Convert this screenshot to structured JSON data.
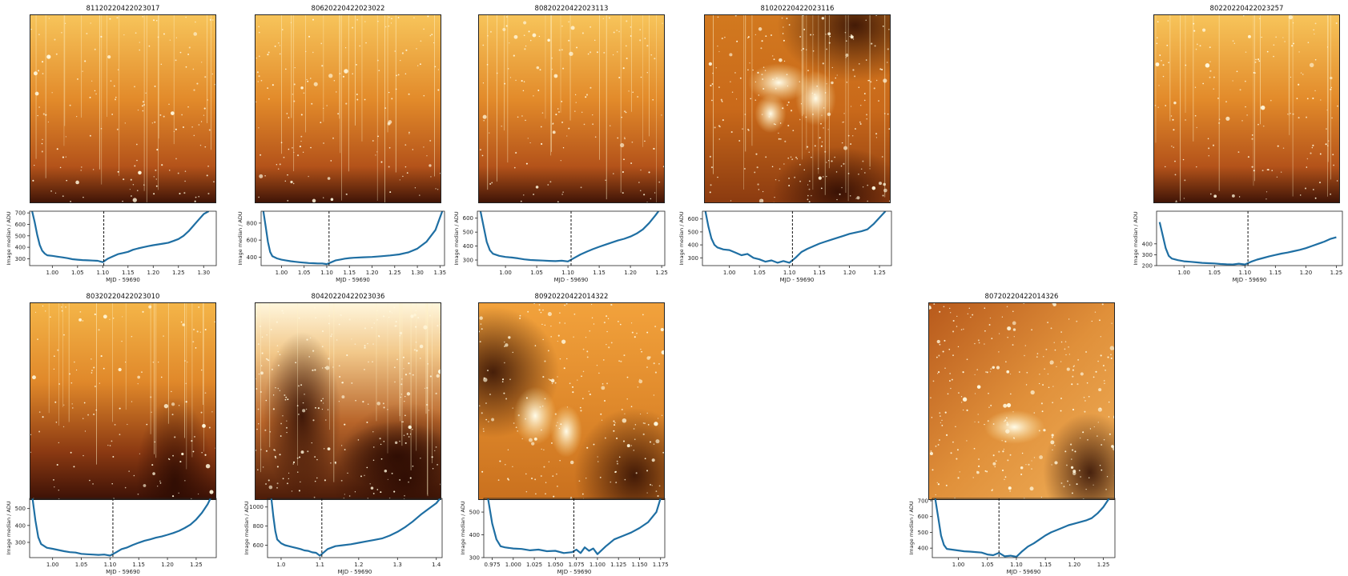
{
  "chart_data": [
    {
      "type": "line",
      "title": "81120220422023017",
      "xlabel": "MJD - 59690",
      "ylabel": "Image median / ADU",
      "xlim": [
        0.955,
        1.325
      ],
      "ylim": [
        240,
        715
      ],
      "xticks": [
        "1.00",
        "1.05",
        "1.10",
        "1.15",
        "1.20",
        "1.25",
        "1.30"
      ],
      "xtick_values": [
        1.0,
        1.05,
        1.1,
        1.15,
        1.2,
        1.25,
        1.3
      ],
      "yticks": [
        "300",
        "400",
        "500",
        "600",
        "700"
      ],
      "ytick_values": [
        300,
        400,
        500,
        600,
        700
      ],
      "vline": 1.102,
      "image_palette": "stripes",
      "x": [
        0.96,
        0.965,
        0.97,
        0.975,
        0.98,
        0.985,
        0.99,
        1.0,
        1.01,
        1.02,
        1.03,
        1.04,
        1.05,
        1.06,
        1.07,
        1.08,
        1.09,
        1.1,
        1.11,
        1.12,
        1.13,
        1.14,
        1.15,
        1.16,
        1.17,
        1.18,
        1.19,
        1.2,
        1.21,
        1.22,
        1.23,
        1.24,
        1.25,
        1.26,
        1.27,
        1.28,
        1.29,
        1.3,
        1.31
      ],
      "y": [
        715,
        620,
        510,
        420,
        370,
        345,
        330,
        325,
        318,
        312,
        305,
        296,
        292,
        288,
        286,
        284,
        282,
        270,
        300,
        320,
        340,
        350,
        360,
        378,
        390,
        400,
        410,
        418,
        425,
        432,
        440,
        455,
        472,
        500,
        540,
        590,
        640,
        690,
        715
      ]
    },
    {
      "type": "line",
      "title": "80620220422023022",
      "xlabel": "MJD - 59690",
      "ylabel": "Image median / ADU",
      "xlim": [
        0.955,
        1.36
      ],
      "ylim": [
        300,
        940
      ],
      "xticks": [
        "1.00",
        "1.05",
        "1.10",
        "1.15",
        "1.20",
        "1.25",
        "1.30",
        "1.35"
      ],
      "xtick_values": [
        1.0,
        1.05,
        1.1,
        1.15,
        1.2,
        1.25,
        1.3,
        1.35
      ],
      "yticks": [
        "400",
        "600",
        "800"
      ],
      "ytick_values": [
        400,
        600,
        800
      ],
      "vline": 1.105,
      "image_palette": "stripes",
      "x": [
        0.96,
        0.965,
        0.97,
        0.975,
        0.98,
        0.99,
        1.0,
        1.01,
        1.02,
        1.03,
        1.04,
        1.05,
        1.06,
        1.07,
        1.08,
        1.09,
        1.1,
        1.11,
        1.12,
        1.13,
        1.14,
        1.15,
        1.16,
        1.18,
        1.2,
        1.22,
        1.24,
        1.26,
        1.28,
        1.3,
        1.32,
        1.34,
        1.355
      ],
      "y": [
        940,
        760,
        580,
        460,
        410,
        385,
        370,
        360,
        352,
        345,
        340,
        335,
        330,
        328,
        325,
        325,
        318,
        340,
        362,
        372,
        382,
        388,
        392,
        398,
        402,
        410,
        420,
        432,
        455,
        500,
        580,
        720,
        940
      ]
    },
    {
      "type": "line",
      "title": "80820220422023113",
      "xlabel": "MJD - 59690",
      "ylabel": "Image median / ADU",
      "xlim": [
        0.955,
        1.255
      ],
      "ylim": [
        260,
        650
      ],
      "xticks": [
        "1.00",
        "1.05",
        "1.10",
        "1.15",
        "1.20",
        "1.25"
      ],
      "xtick_values": [
        1.0,
        1.05,
        1.1,
        1.15,
        1.2,
        1.25
      ],
      "yticks": [
        "300",
        "400",
        "500",
        "600"
      ],
      "ytick_values": [
        300,
        400,
        500,
        600
      ],
      "vline": 1.105,
      "image_palette": "stripes",
      "x": [
        0.96,
        0.965,
        0.97,
        0.975,
        0.98,
        0.99,
        1.0,
        1.01,
        1.02,
        1.03,
        1.04,
        1.05,
        1.06,
        1.07,
        1.08,
        1.09,
        1.1,
        1.11,
        1.12,
        1.13,
        1.14,
        1.15,
        1.16,
        1.17,
        1.18,
        1.19,
        1.2,
        1.21,
        1.22,
        1.23,
        1.24,
        1.245
      ],
      "y": [
        650,
        540,
        430,
        370,
        345,
        330,
        322,
        318,
        312,
        305,
        300,
        298,
        296,
        294,
        292,
        295,
        290,
        315,
        340,
        360,
        378,
        395,
        410,
        425,
        440,
        452,
        468,
        490,
        520,
        565,
        620,
        650
      ]
    },
    {
      "type": "line",
      "title": "81020220422023116",
      "xlabel": "MJD - 59690",
      "ylabel": "Image median / ADU",
      "xlim": [
        0.955,
        1.27
      ],
      "ylim": [
        240,
        660
      ],
      "xticks": [
        "1.00",
        "1.05",
        "1.10",
        "1.15",
        "1.20",
        "1.25"
      ],
      "xtick_values": [
        1.0,
        1.05,
        1.1,
        1.15,
        1.2,
        1.25
      ],
      "yticks": [
        "300",
        "400",
        "500",
        "600"
      ],
      "ytick_values": [
        300,
        400,
        500,
        600
      ],
      "vline": 1.105,
      "image_palette": "nebula",
      "x": [
        0.96,
        0.965,
        0.97,
        0.975,
        0.98,
        0.99,
        1.0,
        1.01,
        1.02,
        1.03,
        1.04,
        1.05,
        1.06,
        1.07,
        1.08,
        1.09,
        1.1,
        1.11,
        1.12,
        1.13,
        1.14,
        1.15,
        1.16,
        1.17,
        1.18,
        1.19,
        1.2,
        1.21,
        1.22,
        1.23,
        1.24,
        1.25,
        1.26
      ],
      "y": [
        660,
        540,
        450,
        400,
        380,
        365,
        360,
        340,
        320,
        330,
        300,
        288,
        270,
        280,
        262,
        275,
        262,
        300,
        345,
        370,
        390,
        410,
        425,
        440,
        455,
        470,
        485,
        495,
        505,
        520,
        560,
        610,
        660
      ]
    },
    {
      "type": "line",
      "title": "80220220422023257",
      "xlabel": "MJD - 59690",
      "ylabel": "Image median / ADU",
      "xlim": [
        0.955,
        1.26
      ],
      "ylim": [
        200,
        700
      ],
      "xticks": [
        "1.00",
        "1.05",
        "1.10",
        "1.15",
        "1.20",
        "1.25"
      ],
      "xtick_values": [
        1.0,
        1.05,
        1.1,
        1.15,
        1.2,
        1.25
      ],
      "yticks": [
        "200",
        "300",
        "400"
      ],
      "ytick_values": [
        200,
        300,
        400
      ],
      "vline": 1.105,
      "image_palette": "stripes",
      "x": [
        0.96,
        0.965,
        0.97,
        0.975,
        0.98,
        0.99,
        1.0,
        1.01,
        1.02,
        1.03,
        1.04,
        1.05,
        1.06,
        1.07,
        1.08,
        1.09,
        1.1,
        1.11,
        1.12,
        1.13,
        1.14,
        1.15,
        1.16,
        1.17,
        1.18,
        1.19,
        1.2,
        1.21,
        1.22,
        1.23,
        1.24,
        1.25
      ],
      "y": [
        600,
        480,
        360,
        290,
        265,
        250,
        240,
        235,
        230,
        225,
        222,
        220,
        215,
        212,
        210,
        218,
        210,
        235,
        255,
        270,
        285,
        298,
        310,
        320,
        332,
        345,
        360,
        380,
        400,
        420,
        445,
        460
      ]
    },
    {
      "type": "line",
      "title": "80320220422023010",
      "xlabel": "MJD - 59690",
      "ylabel": "Image median / ADU",
      "xlim": [
        0.96,
        1.285
      ],
      "ylim": [
        210,
        560
      ],
      "xticks": [
        "1.00",
        "1.05",
        "1.10",
        "1.15",
        "1.20",
        "1.25"
      ],
      "xtick_values": [
        1.0,
        1.05,
        1.1,
        1.15,
        1.2,
        1.25
      ],
      "yticks": [
        "300",
        "400",
        "500"
      ],
      "ytick_values": [
        300,
        400,
        500
      ],
      "vline": 1.105,
      "image_palette": "dark",
      "x": [
        0.965,
        0.97,
        0.975,
        0.98,
        0.99,
        1.0,
        1.01,
        1.02,
        1.03,
        1.04,
        1.05,
        1.06,
        1.07,
        1.08,
        1.09,
        1.1,
        1.11,
        1.12,
        1.13,
        1.14,
        1.15,
        1.16,
        1.17,
        1.18,
        1.19,
        1.2,
        1.21,
        1.22,
        1.23,
        1.24,
        1.25,
        1.26,
        1.27,
        1.275
      ],
      "y": [
        560,
        430,
        330,
        290,
        268,
        262,
        255,
        248,
        242,
        240,
        232,
        230,
        228,
        226,
        228,
        222,
        240,
        260,
        270,
        285,
        298,
        310,
        318,
        328,
        335,
        345,
        355,
        368,
        385,
        405,
        435,
        475,
        525,
        560
      ]
    },
    {
      "type": "line",
      "title": "80420220422023036",
      "xlabel": "MJD - 59690",
      "ylabel": "Image median / ADU",
      "xlim": [
        0.965,
        1.415
      ],
      "ylim": [
        470,
        1090
      ],
      "xticks": [
        "1.0",
        "1.1",
        "1.2",
        "1.3",
        "1.4"
      ],
      "xtick_values": [
        1.0,
        1.1,
        1.2,
        1.3,
        1.4
      ],
      "yticks": [
        "600",
        "800",
        "1000"
      ],
      "ytick_values": [
        600,
        800,
        1000
      ],
      "vline": 1.105,
      "image_palette": "cloudy",
      "x": [
        0.975,
        0.98,
        0.985,
        0.99,
        1.0,
        1.01,
        1.02,
        1.03,
        1.04,
        1.05,
        1.06,
        1.07,
        1.08,
        1.09,
        1.1,
        1.12,
        1.14,
        1.16,
        1.18,
        1.2,
        1.22,
        1.24,
        1.26,
        1.28,
        1.3,
        1.32,
        1.34,
        1.36,
        1.38,
        1.4,
        1.41
      ],
      "y": [
        1090,
        900,
        750,
        660,
        620,
        600,
        590,
        580,
        570,
        560,
        545,
        540,
        525,
        520,
        490,
        560,
        590,
        600,
        610,
        625,
        640,
        655,
        670,
        700,
        740,
        790,
        850,
        920,
        980,
        1040,
        1090
      ]
    },
    {
      "type": "line",
      "title": "80920220422014322",
      "xlabel": "MJD - 59690",
      "ylabel": "Image median / ADU",
      "xlim": [
        0.965,
        1.18
      ],
      "ylim": [
        300,
        560
      ],
      "xticks": [
        "0.975",
        "1.000",
        "1.025",
        "1.050",
        "1.075",
        "1.100",
        "1.125",
        "1.150",
        "1.175"
      ],
      "xtick_values": [
        0.975,
        1.0,
        1.025,
        1.05,
        1.075,
        1.1,
        1.125,
        1.15,
        1.175
      ],
      "yticks": [
        "300",
        "400",
        "500"
      ],
      "ytick_values": [
        300,
        400,
        500
      ],
      "vline": 1.072,
      "image_palette": "bright",
      "x": [
        0.97,
        0.975,
        0.98,
        0.985,
        0.99,
        1.0,
        1.01,
        1.02,
        1.03,
        1.04,
        1.05,
        1.06,
        1.07,
        1.075,
        1.08,
        1.085,
        1.09,
        1.095,
        1.1,
        1.11,
        1.12,
        1.13,
        1.14,
        1.15,
        1.16,
        1.17,
        1.175
      ],
      "y": [
        560,
        450,
        380,
        350,
        345,
        340,
        338,
        332,
        335,
        328,
        330,
        320,
        324,
        335,
        320,
        345,
        330,
        340,
        315,
        350,
        380,
        395,
        410,
        430,
        455,
        500,
        560
      ]
    },
    {
      "type": "line",
      "title": "80720220422014326",
      "xlabel": "MJD - 59690",
      "ylabel": "Image median / ADU",
      "xlim": [
        0.955,
        1.27
      ],
      "ylim": [
        340,
        715
      ],
      "xticks": [
        "1.00",
        "1.05",
        "1.10",
        "1.15",
        "1.20",
        "1.25"
      ],
      "xtick_values": [
        1.0,
        1.05,
        1.1,
        1.15,
        1.2,
        1.25
      ],
      "yticks": [
        "400",
        "500",
        "600",
        "700"
      ],
      "ytick_values": [
        400,
        500,
        600,
        700
      ],
      "vline": 1.07,
      "image_palette": "uniform",
      "x": [
        0.96,
        0.965,
        0.97,
        0.975,
        0.98,
        0.99,
        1.0,
        1.01,
        1.02,
        1.03,
        1.04,
        1.05,
        1.06,
        1.07,
        1.08,
        1.09,
        1.1,
        1.11,
        1.12,
        1.13,
        1.14,
        1.15,
        1.16,
        1.17,
        1.18,
        1.19,
        1.2,
        1.21,
        1.22,
        1.23,
        1.24,
        1.25,
        1.26
      ],
      "y": [
        715,
        600,
        480,
        420,
        395,
        390,
        385,
        380,
        378,
        375,
        372,
        360,
        355,
        370,
        348,
        352,
        345,
        380,
        410,
        430,
        455,
        480,
        500,
        515,
        530,
        545,
        555,
        565,
        575,
        590,
        620,
        660,
        715
      ]
    }
  ]
}
